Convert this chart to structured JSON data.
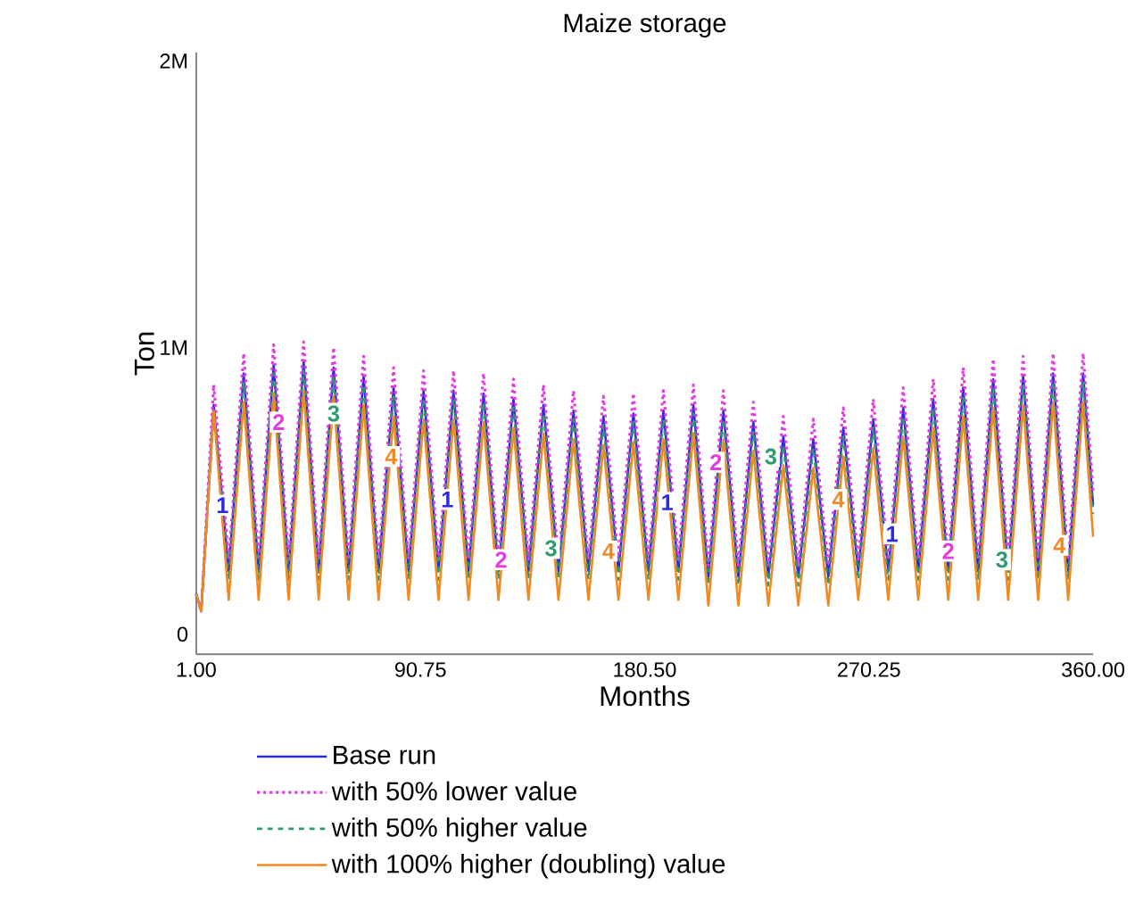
{
  "chart_data": {
    "type": "line",
    "title": "Maize storage",
    "xlabel": "Months",
    "ylabel": "Ton",
    "x": [
      1,
      3,
      8,
      14,
      20,
      26,
      32,
      38,
      44,
      50,
      56,
      62,
      68,
      74,
      80,
      86,
      92,
      98,
      104,
      110,
      116,
      122,
      128,
      134,
      140,
      146,
      152,
      158,
      164,
      170,
      176,
      182,
      188,
      194,
      200,
      206,
      212,
      218,
      224,
      230,
      236,
      242,
      248,
      254,
      260,
      266,
      272,
      278,
      284,
      290,
      296,
      302,
      308,
      314,
      320,
      326,
      332,
      338,
      344,
      350,
      356,
      360
    ],
    "series": [
      {
        "name": "Base run",
        "color": "#2a2ae0",
        "line_style": "solid",
        "values": [
          140000,
          80000,
          800000,
          220000,
          910000,
          220000,
          940000,
          220000,
          950000,
          220000,
          930000,
          220000,
          900000,
          220000,
          860000,
          220000,
          850000,
          220000,
          850000,
          220000,
          840000,
          220000,
          820000,
          220000,
          800000,
          220000,
          780000,
          220000,
          760000,
          220000,
          770000,
          220000,
          780000,
          220000,
          800000,
          200000,
          780000,
          200000,
          740000,
          200000,
          690000,
          200000,
          680000,
          200000,
          720000,
          220000,
          750000,
          220000,
          790000,
          220000,
          820000,
          220000,
          860000,
          220000,
          890000,
          220000,
          900000,
          220000,
          910000,
          220000,
          910000,
          450000
        ]
      },
      {
        "name": "with 50% lower value",
        "color": "#e03ce0",
        "line_style": "dotted",
        "values": [
          140000,
          80000,
          870000,
          260000,
          980000,
          260000,
          1010000,
          260000,
          1020000,
          260000,
          1000000,
          260000,
          970000,
          260000,
          930000,
          260000,
          920000,
          260000,
          920000,
          260000,
          910000,
          260000,
          890000,
          260000,
          870000,
          260000,
          850000,
          260000,
          830000,
          260000,
          840000,
          260000,
          850000,
          260000,
          870000,
          240000,
          850000,
          240000,
          810000,
          240000,
          760000,
          240000,
          750000,
          240000,
          790000,
          260000,
          820000,
          260000,
          860000,
          260000,
          890000,
          260000,
          930000,
          260000,
          960000,
          260000,
          970000,
          260000,
          980000,
          260000,
          980000,
          500000
        ]
      },
      {
        "name": "with 50% higher value",
        "color": "#2e9a6e",
        "line_style": "dashed",
        "values": [
          140000,
          80000,
          770000,
          190000,
          880000,
          190000,
          910000,
          190000,
          920000,
          190000,
          900000,
          190000,
          870000,
          190000,
          830000,
          190000,
          820000,
          190000,
          820000,
          190000,
          810000,
          190000,
          790000,
          190000,
          770000,
          190000,
          750000,
          190000,
          730000,
          190000,
          740000,
          190000,
          750000,
          190000,
          770000,
          170000,
          750000,
          170000,
          710000,
          170000,
          660000,
          170000,
          650000,
          170000,
          690000,
          190000,
          720000,
          190000,
          760000,
          190000,
          790000,
          190000,
          830000,
          190000,
          860000,
          190000,
          870000,
          190000,
          880000,
          190000,
          880000,
          420000
        ]
      },
      {
        "name": "with 100% higher (doubling) value",
        "color": "#f08a20",
        "line_style": "solid",
        "values": [
          140000,
          80000,
          780000,
          120000,
          810000,
          120000,
          840000,
          120000,
          850000,
          120000,
          830000,
          120000,
          800000,
          120000,
          760000,
          120000,
          750000,
          120000,
          750000,
          120000,
          740000,
          120000,
          720000,
          120000,
          700000,
          120000,
          680000,
          120000,
          660000,
          120000,
          670000,
          120000,
          680000,
          120000,
          700000,
          100000,
          680000,
          100000,
          640000,
          100000,
          590000,
          100000,
          580000,
          100000,
          620000,
          120000,
          650000,
          120000,
          690000,
          120000,
          720000,
          120000,
          760000,
          120000,
          790000,
          120000,
          800000,
          120000,
          810000,
          120000,
          810000,
          340000
        ]
      }
    ],
    "xlim": [
      1,
      360
    ],
    "ylim": [
      -70000,
      2030000
    ],
    "xticks": [
      {
        "value": 1,
        "label": "1.00"
      },
      {
        "value": 90.75,
        "label": "90.75"
      },
      {
        "value": 180.5,
        "label": "180.50"
      },
      {
        "value": 270.25,
        "label": "270.25"
      },
      {
        "value": 360,
        "label": "360.00"
      }
    ],
    "yticks": [
      0,
      {
        "value": 1000000,
        "label": "1M"
      },
      {
        "value": 2000000,
        "label": "2M"
      }
    ],
    "legend": "bottom",
    "annotations": [
      {
        "text": "1",
        "x": 11.5,
        "y": 450000
      },
      {
        "text": "2",
        "x": 34,
        "y": 740000
      },
      {
        "text": "3",
        "x": 56,
        "y": 770000
      },
      {
        "text": "4",
        "x": 79,
        "y": 620000
      },
      {
        "text": "1",
        "x": 101.5,
        "y": 470000
      },
      {
        "text": "2",
        "x": 123,
        "y": 260000
      },
      {
        "text": "3",
        "x": 143,
        "y": 300000
      },
      {
        "text": "4",
        "x": 166,
        "y": 290000
      },
      {
        "text": "1",
        "x": 189.5,
        "y": 460000
      },
      {
        "text": "2",
        "x": 209,
        "y": 600000
      },
      {
        "text": "3",
        "x": 231,
        "y": 620000
      },
      {
        "text": "4",
        "x": 258,
        "y": 470000
      },
      {
        "text": "1",
        "x": 279.5,
        "y": 350000
      },
      {
        "text": "2",
        "x": 302,
        "y": 290000
      },
      {
        "text": "3",
        "x": 323.5,
        "y": 260000
      },
      {
        "text": "4",
        "x": 346.5,
        "y": 310000
      }
    ]
  }
}
